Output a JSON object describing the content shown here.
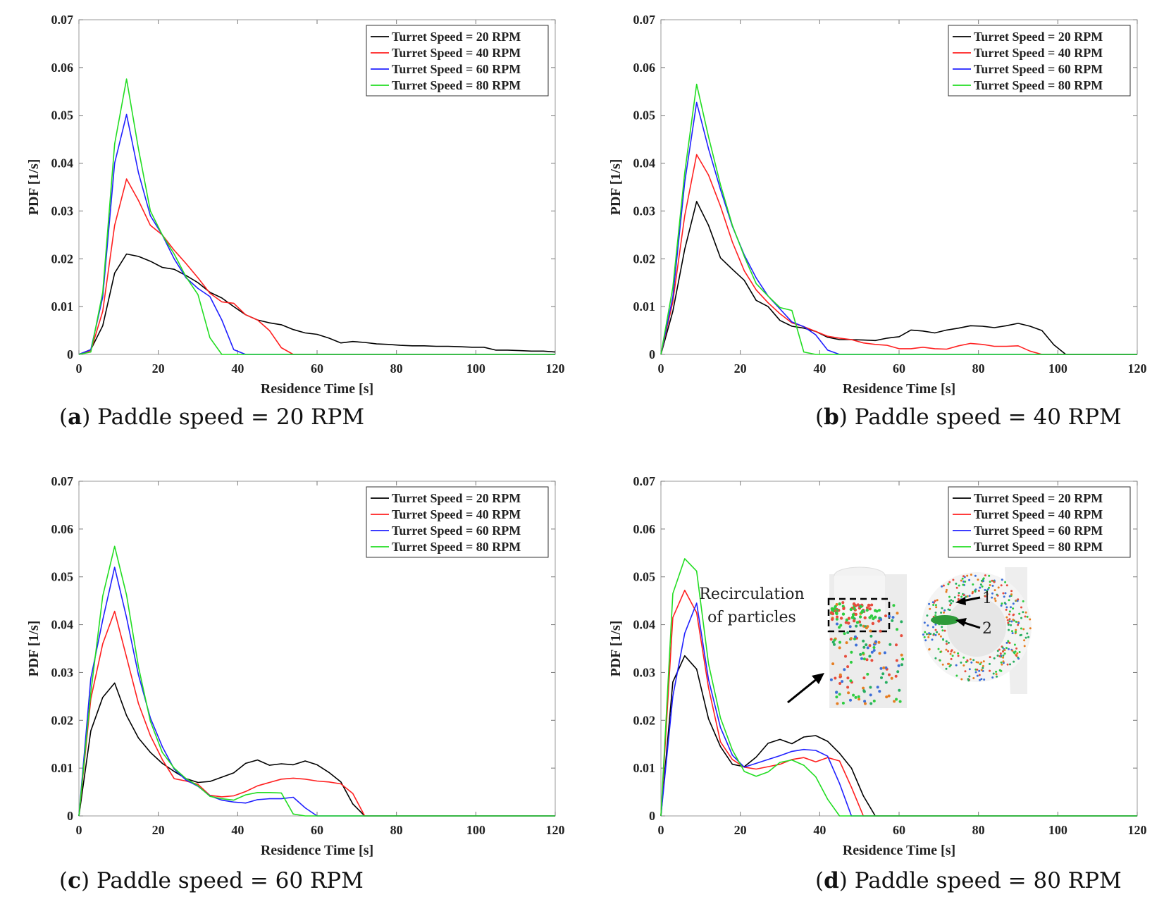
{
  "chart_data": [
    {
      "type": "line",
      "panel": "a",
      "caption_letter": "a",
      "caption_text": ") Paddle speed = 20 RPM",
      "xlabel": "Residence Time [s]",
      "ylabel": "PDF [1/s]",
      "xlim": [
        0,
        120
      ],
      "ylim": [
        0,
        0.07
      ],
      "xticks": [
        "0",
        "20",
        "40",
        "60",
        "80",
        "100",
        "120"
      ],
      "yticks": [
        "0",
        "0.01",
        "0.02",
        "0.03",
        "0.04",
        "0.05",
        "0.06",
        "0.07"
      ],
      "legend_position": "top-right",
      "series": [
        {
          "name": "Turret Speed = 20 RPM",
          "color": "#000000",
          "x": [
            0,
            3,
            6,
            9,
            12,
            15,
            18,
            21,
            24,
            27,
            30,
            33,
            36,
            39,
            42,
            45,
            48,
            51,
            54,
            57,
            60,
            63,
            66,
            69,
            72,
            75,
            78,
            81,
            84,
            87,
            90,
            93,
            96,
            99,
            102,
            105,
            108,
            111,
            114,
            117,
            120
          ],
          "y": [
            0,
            0.001,
            0.006,
            0.017,
            0.021,
            0.0205,
            0.0195,
            0.0182,
            0.0178,
            0.0165,
            0.015,
            0.013,
            0.0118,
            0.01,
            0.0083,
            0.0072,
            0.0066,
            0.0062,
            0.0052,
            0.0045,
            0.0042,
            0.0034,
            0.0024,
            0.0027,
            0.0025,
            0.0022,
            0.0021,
            0.0019,
            0.0018,
            0.0018,
            0.0017,
            0.0017,
            0.0016,
            0.0015,
            0.0015,
            0.0009,
            0.0009,
            0.0008,
            0.0007,
            0.0007,
            0.0005
          ]
        },
        {
          "name": "Turret Speed = 40 RPM",
          "color": "#ff2020",
          "x": [
            0,
            3,
            6,
            9,
            12,
            15,
            18,
            21,
            24,
            27,
            30,
            33,
            36,
            39,
            42,
            45,
            48,
            51,
            54,
            57,
            60,
            120
          ],
          "y": [
            0,
            0.0008,
            0.009,
            0.027,
            0.0367,
            0.0322,
            0.027,
            0.025,
            0.0218,
            0.019,
            0.016,
            0.0128,
            0.011,
            0.0107,
            0.0083,
            0.0072,
            0.005,
            0.0014,
            0,
            0,
            0,
            0
          ]
        },
        {
          "name": "Turret Speed = 60 RPM",
          "color": "#2020ff",
          "x": [
            0,
            3,
            6,
            9,
            12,
            15,
            18,
            21,
            24,
            27,
            30,
            33,
            36,
            39,
            42,
            45,
            120
          ],
          "y": [
            0,
            0.001,
            0.012,
            0.04,
            0.0502,
            0.038,
            0.029,
            0.025,
            0.02,
            0.016,
            0.0138,
            0.0121,
            0.0072,
            0.001,
            0,
            0,
            0
          ]
        },
        {
          "name": "Turret Speed = 80 RPM",
          "color": "#22dd22",
          "x": [
            0,
            3,
            6,
            9,
            12,
            15,
            18,
            21,
            24,
            27,
            30,
            33,
            36,
            39,
            42,
            120
          ],
          "y": [
            0,
            0.0005,
            0.013,
            0.044,
            0.0576,
            0.043,
            0.03,
            0.025,
            0.021,
            0.0162,
            0.0125,
            0.0035,
            0,
            0,
            0,
            0
          ]
        }
      ]
    },
    {
      "type": "line",
      "panel": "b",
      "caption_letter": "b",
      "caption_text": ") Paddle speed = 40 RPM",
      "xlabel": "Residence Time [s]",
      "ylabel": "PDF [1/s]",
      "xlim": [
        0,
        120
      ],
      "ylim": [
        0,
        0.07
      ],
      "xticks": [
        "0",
        "20",
        "40",
        "60",
        "80",
        "100",
        "120"
      ],
      "yticks": [
        "0",
        "0.01",
        "0.02",
        "0.03",
        "0.04",
        "0.05",
        "0.06",
        "0.07"
      ],
      "legend_position": "top-right",
      "series": [
        {
          "name": "Turret Speed = 20 RPM",
          "color": "#000000",
          "x": [
            0,
            3,
            6,
            9,
            12,
            15,
            18,
            21,
            24,
            27,
            30,
            33,
            36,
            39,
            42,
            45,
            48,
            51,
            54,
            57,
            60,
            63,
            66,
            69,
            72,
            75,
            78,
            81,
            84,
            87,
            90,
            93,
            96,
            99,
            102,
            120
          ],
          "y": [
            0,
            0.009,
            0.022,
            0.032,
            0.027,
            0.0202,
            0.0178,
            0.0155,
            0.0113,
            0.01,
            0.0071,
            0.0059,
            0.0055,
            0.0048,
            0.0036,
            0.0031,
            0.0031,
            0.003,
            0.0029,
            0.0034,
            0.0037,
            0.0051,
            0.0049,
            0.0045,
            0.0051,
            0.0055,
            0.006,
            0.0059,
            0.0056,
            0.006,
            0.0065,
            0.0059,
            0.005,
            0.002,
            0,
            0
          ]
        },
        {
          "name": "Turret Speed = 40 RPM",
          "color": "#ff2020",
          "x": [
            0,
            3,
            6,
            9,
            12,
            15,
            18,
            21,
            24,
            27,
            30,
            33,
            36,
            39,
            42,
            45,
            48,
            51,
            54,
            57,
            60,
            63,
            66,
            69,
            72,
            75,
            78,
            81,
            84,
            87,
            90,
            93,
            96,
            120
          ],
          "y": [
            0,
            0.011,
            0.029,
            0.0418,
            0.0375,
            0.031,
            0.0235,
            0.0175,
            0.0135,
            0.0108,
            0.0085,
            0.0066,
            0.0058,
            0.0048,
            0.0038,
            0.0034,
            0.0031,
            0.0024,
            0.0021,
            0.0019,
            0.0012,
            0.0012,
            0.0015,
            0.0012,
            0.0011,
            0.0018,
            0.0023,
            0.0021,
            0.0017,
            0.0017,
            0.0018,
            0.0007,
            0,
            0
          ]
        },
        {
          "name": "Turret Speed = 60 RPM",
          "color": "#2020ff",
          "x": [
            0,
            3,
            6,
            9,
            12,
            15,
            18,
            21,
            24,
            27,
            30,
            33,
            36,
            39,
            42,
            45,
            120
          ],
          "y": [
            0,
            0.012,
            0.036,
            0.0527,
            0.043,
            0.0345,
            0.0268,
            0.0208,
            0.016,
            0.0122,
            0.0095,
            0.0068,
            0.0058,
            0.0041,
            0.0009,
            0,
            0
          ]
        },
        {
          "name": "Turret Speed = 80 RPM",
          "color": "#22dd22",
          "x": [
            0,
            3,
            6,
            9,
            12,
            15,
            18,
            21,
            24,
            27,
            30,
            33,
            36,
            39,
            42,
            120
          ],
          "y": [
            0,
            0.014,
            0.038,
            0.0565,
            0.0455,
            0.0355,
            0.027,
            0.0205,
            0.0148,
            0.0122,
            0.0098,
            0.0092,
            0.0005,
            0,
            0,
            0
          ]
        }
      ]
    },
    {
      "type": "line",
      "panel": "c",
      "caption_letter": "c",
      "caption_text": ") Paddle speed = 60 RPM",
      "xlabel": "Residence Time [s]",
      "ylabel": "PDF [1/s]",
      "xlim": [
        0,
        120
      ],
      "ylim": [
        0,
        0.07
      ],
      "xticks": [
        "0",
        "20",
        "40",
        "60",
        "80",
        "100",
        "120"
      ],
      "yticks": [
        "0",
        "0.01",
        "0.02",
        "0.03",
        "0.04",
        "0.05",
        "0.06",
        "0.07"
      ],
      "legend_position": "top-right",
      "series": [
        {
          "name": "Turret Speed = 20 RPM",
          "color": "#000000",
          "x": [
            0,
            3,
            6,
            9,
            12,
            15,
            18,
            21,
            24,
            27,
            30,
            33,
            36,
            39,
            42,
            45,
            48,
            51,
            54,
            57,
            60,
            63,
            66,
            69,
            72,
            120
          ],
          "y": [
            0,
            0.0178,
            0.0248,
            0.0278,
            0.021,
            0.0163,
            0.0133,
            0.011,
            0.0093,
            0.0078,
            0.007,
            0.0072,
            0.0081,
            0.009,
            0.011,
            0.0117,
            0.0106,
            0.0109,
            0.0107,
            0.0115,
            0.0107,
            0.0091,
            0.0071,
            0.0025,
            0,
            0
          ]
        },
        {
          "name": "Turret Speed = 40 RPM",
          "color": "#ff2020",
          "x": [
            0,
            3,
            6,
            9,
            12,
            15,
            18,
            21,
            24,
            27,
            30,
            33,
            36,
            39,
            42,
            45,
            48,
            51,
            54,
            57,
            60,
            63,
            66,
            69,
            72,
            120
          ],
          "y": [
            0,
            0.0245,
            0.036,
            0.0428,
            0.0332,
            0.0235,
            0.0168,
            0.0118,
            0.0078,
            0.0073,
            0.0066,
            0.0043,
            0.004,
            0.0042,
            0.0051,
            0.0063,
            0.007,
            0.0077,
            0.0079,
            0.0077,
            0.0073,
            0.0071,
            0.0067,
            0.0047,
            0,
            0
          ]
        },
        {
          "name": "Turret Speed = 60 RPM",
          "color": "#2020ff",
          "x": [
            0,
            3,
            6,
            9,
            12,
            15,
            18,
            21,
            24,
            27,
            30,
            33,
            36,
            39,
            42,
            45,
            48,
            51,
            54,
            57,
            60,
            63,
            120
          ],
          "y": [
            0,
            0.0288,
            0.041,
            0.052,
            0.0415,
            0.0295,
            0.0205,
            0.0145,
            0.0098,
            0.0075,
            0.0062,
            0.0042,
            0.0033,
            0.0029,
            0.0027,
            0.0034,
            0.0036,
            0.0036,
            0.0039,
            0.0017,
            0,
            0,
            0
          ]
        },
        {
          "name": "Turret Speed = 80 RPM",
          "color": "#22dd22",
          "x": [
            0,
            3,
            6,
            9,
            12,
            15,
            18,
            21,
            24,
            27,
            30,
            33,
            36,
            39,
            42,
            45,
            48,
            51,
            54,
            57,
            120
          ],
          "y": [
            0,
            0.0258,
            0.046,
            0.0564,
            0.0462,
            0.0312,
            0.0198,
            0.0133,
            0.01,
            0.0078,
            0.0063,
            0.0041,
            0.0036,
            0.0033,
            0.0044,
            0.0049,
            0.0049,
            0.0048,
            0.0004,
            0,
            0
          ]
        }
      ]
    },
    {
      "type": "line",
      "panel": "d",
      "caption_letter": "d",
      "caption_text": ") Paddle speed = 80 RPM",
      "xlabel": "Residence Time [s]",
      "ylabel": "PDF [1/s]",
      "xlim": [
        0,
        120
      ],
      "ylim": [
        0,
        0.07
      ],
      "xticks": [
        "0",
        "20",
        "40",
        "60",
        "80",
        "100",
        "120"
      ],
      "yticks": [
        "0",
        "0.01",
        "0.02",
        "0.03",
        "0.04",
        "0.05",
        "0.06",
        "0.07"
      ],
      "legend_position": "top-right",
      "annotation": "Recirculation of particles",
      "annotation_lines": [
        "Recirculation",
        "of particles"
      ],
      "inset_labels": [
        "1",
        "2"
      ],
      "series": [
        {
          "name": "Turret Speed = 20 RPM",
          "color": "#000000",
          "x": [
            0,
            3,
            6,
            9,
            12,
            15,
            18,
            21,
            24,
            27,
            30,
            33,
            36,
            39,
            42,
            45,
            48,
            51,
            54,
            120
          ],
          "y": [
            0,
            0.028,
            0.0335,
            0.0307,
            0.0203,
            0.0145,
            0.0108,
            0.0103,
            0.0123,
            0.0152,
            0.016,
            0.0151,
            0.0165,
            0.0168,
            0.0156,
            0.0131,
            0.01,
            0.0042,
            0,
            0
          ]
        },
        {
          "name": "Turret Speed = 40 RPM",
          "color": "#ff2020",
          "x": [
            0,
            3,
            6,
            9,
            12,
            15,
            18,
            21,
            24,
            27,
            30,
            33,
            36,
            39,
            42,
            45,
            48,
            51,
            120
          ],
          "y": [
            0,
            0.0415,
            0.0472,
            0.0425,
            0.0268,
            0.0155,
            0.0118,
            0.0102,
            0.0098,
            0.0103,
            0.0108,
            0.0118,
            0.0122,
            0.0113,
            0.0122,
            0.0115,
            0.006,
            0,
            0
          ]
        },
        {
          "name": "Turret Speed = 60 RPM",
          "color": "#2020ff",
          "x": [
            0,
            3,
            6,
            9,
            12,
            15,
            18,
            21,
            24,
            27,
            30,
            33,
            36,
            39,
            42,
            45,
            48,
            120
          ],
          "y": [
            0,
            0.025,
            0.0382,
            0.0445,
            0.0285,
            0.0185,
            0.0127,
            0.0102,
            0.011,
            0.0118,
            0.0126,
            0.0135,
            0.0139,
            0.0137,
            0.0125,
            0.0068,
            0,
            0
          ]
        },
        {
          "name": "Turret Speed = 80 RPM",
          "color": "#22dd22",
          "x": [
            0,
            3,
            6,
            9,
            12,
            15,
            18,
            21,
            24,
            27,
            30,
            33,
            36,
            39,
            42,
            45,
            120
          ],
          "y": [
            0,
            0.0465,
            0.0538,
            0.0512,
            0.0318,
            0.0205,
            0.0138,
            0.0093,
            0.0083,
            0.0092,
            0.0112,
            0.0117,
            0.0106,
            0.0082,
            0.0035,
            0,
            0
          ]
        }
      ]
    }
  ]
}
